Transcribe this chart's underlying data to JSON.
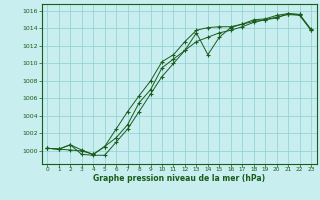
{
  "title": "Graphe pression niveau de la mer (hPa)",
  "bg_color": "#c8eef0",
  "grid_color": "#8ecfcf",
  "line_color": "#1a5c1a",
  "xlim": [
    -0.5,
    23.5
  ],
  "ylim": [
    998.5,
    1016.8
  ],
  "xticks": [
    0,
    1,
    2,
    3,
    4,
    5,
    6,
    7,
    8,
    9,
    10,
    11,
    12,
    13,
    14,
    15,
    16,
    17,
    18,
    19,
    20,
    21,
    22,
    23
  ],
  "yticks": [
    1000,
    1002,
    1004,
    1006,
    1008,
    1010,
    1012,
    1014,
    1016
  ],
  "series1_x": [
    0,
    1,
    2,
    3,
    4,
    5,
    6,
    7,
    8,
    9,
    10,
    11,
    12,
    13,
    14,
    15,
    16,
    17,
    18,
    19,
    20,
    21,
    22,
    23
  ],
  "series1_y": [
    1000.3,
    1000.2,
    1000.7,
    1000.1,
    999.6,
    1000.5,
    1001.5,
    1003.0,
    1005.5,
    1007.0,
    1009.5,
    1010.5,
    1011.5,
    1013.5,
    1011.0,
    1013.0,
    1014.1,
    1014.5,
    1014.8,
    1015.0,
    1015.2,
    1015.7,
    1015.6,
    1013.8
  ],
  "series2_x": [
    0,
    1,
    2,
    3,
    4,
    5,
    6,
    7,
    8,
    9,
    10,
    11,
    12,
    13,
    14,
    15,
    16,
    17,
    18,
    19,
    20,
    21,
    22,
    23
  ],
  "series2_y": [
    1000.3,
    1000.2,
    1000.1,
    1000.0,
    999.6,
    1000.5,
    1002.5,
    1004.5,
    1006.3,
    1008.0,
    1010.2,
    1011.0,
    1012.5,
    1013.8,
    1014.1,
    1014.2,
    1014.2,
    1014.5,
    1015.0,
    1015.1,
    1015.5,
    1015.7,
    1015.6,
    1013.9
  ],
  "series3_x": [
    0,
    1,
    2,
    3,
    4,
    5,
    6,
    7,
    8,
    9,
    10,
    11,
    12,
    13,
    14,
    15,
    16,
    17,
    18,
    19,
    20,
    21,
    22,
    23
  ],
  "series3_y": [
    1000.3,
    1000.2,
    1000.7,
    999.6,
    999.5,
    999.5,
    1001.0,
    1002.5,
    1004.5,
    1006.5,
    1008.5,
    1010.0,
    1011.5,
    1012.5,
    1013.0,
    1013.5,
    1013.8,
    1014.2,
    1014.7,
    1015.0,
    1015.3,
    1015.6,
    1015.5,
    1013.8
  ]
}
